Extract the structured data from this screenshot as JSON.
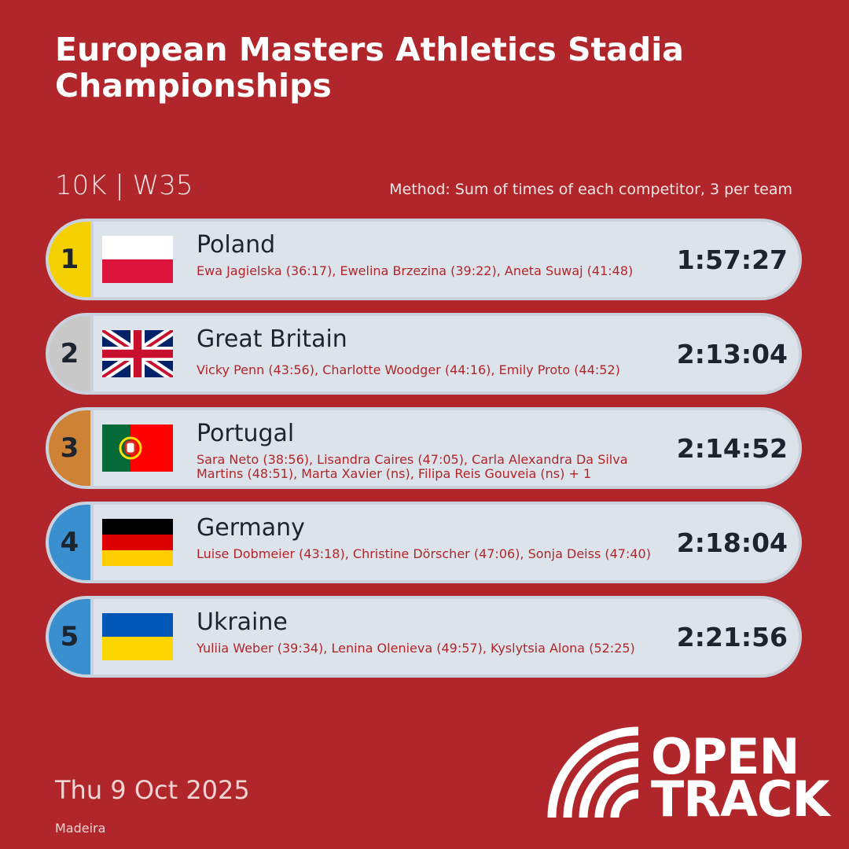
{
  "header": {
    "title": "European Masters Athletics Stadia Championships",
    "event": "10K | W35",
    "method": "Method: Sum of times of each competitor, 3 per team"
  },
  "results": [
    {
      "rank": "1",
      "country": "Poland",
      "athletes": "Ewa Jagielska (36:17), Ewelina Brzezina (39:22), Aneta Suwaj (41:48)",
      "time": "1:57:27"
    },
    {
      "rank": "2",
      "country": "Great Britain",
      "athletes": "Vicky Penn (43:56), Charlotte Woodger (44:16), Emily Proto (44:52)",
      "time": "2:13:04"
    },
    {
      "rank": "3",
      "country": "Portugal",
      "athletes": "Sara Neto (38:56), Lisandra Caires (47:05), Carla Alexandra Da Silva Martins (48:51), Marta Xavier (ns), Filipa Reis Gouveia (ns) + 1",
      "time": "2:14:52"
    },
    {
      "rank": "4",
      "country": "Germany",
      "athletes": "Luise Dobmeier (43:18), Christine Dörscher (47:06), Sonja Deiss (47:40)",
      "time": "2:18:04"
    },
    {
      "rank": "5",
      "country": "Ukraine",
      "athletes": "Yuliia Weber (39:34), Lenina Olenieva (49:57), Kyslytsia Alona (52:25)",
      "time": "2:21:56"
    }
  ],
  "footer": {
    "date": "Thu 9 Oct 2025",
    "location": "Madeira",
    "logo_line1": "OPEN",
    "logo_line2": "TRACK"
  }
}
